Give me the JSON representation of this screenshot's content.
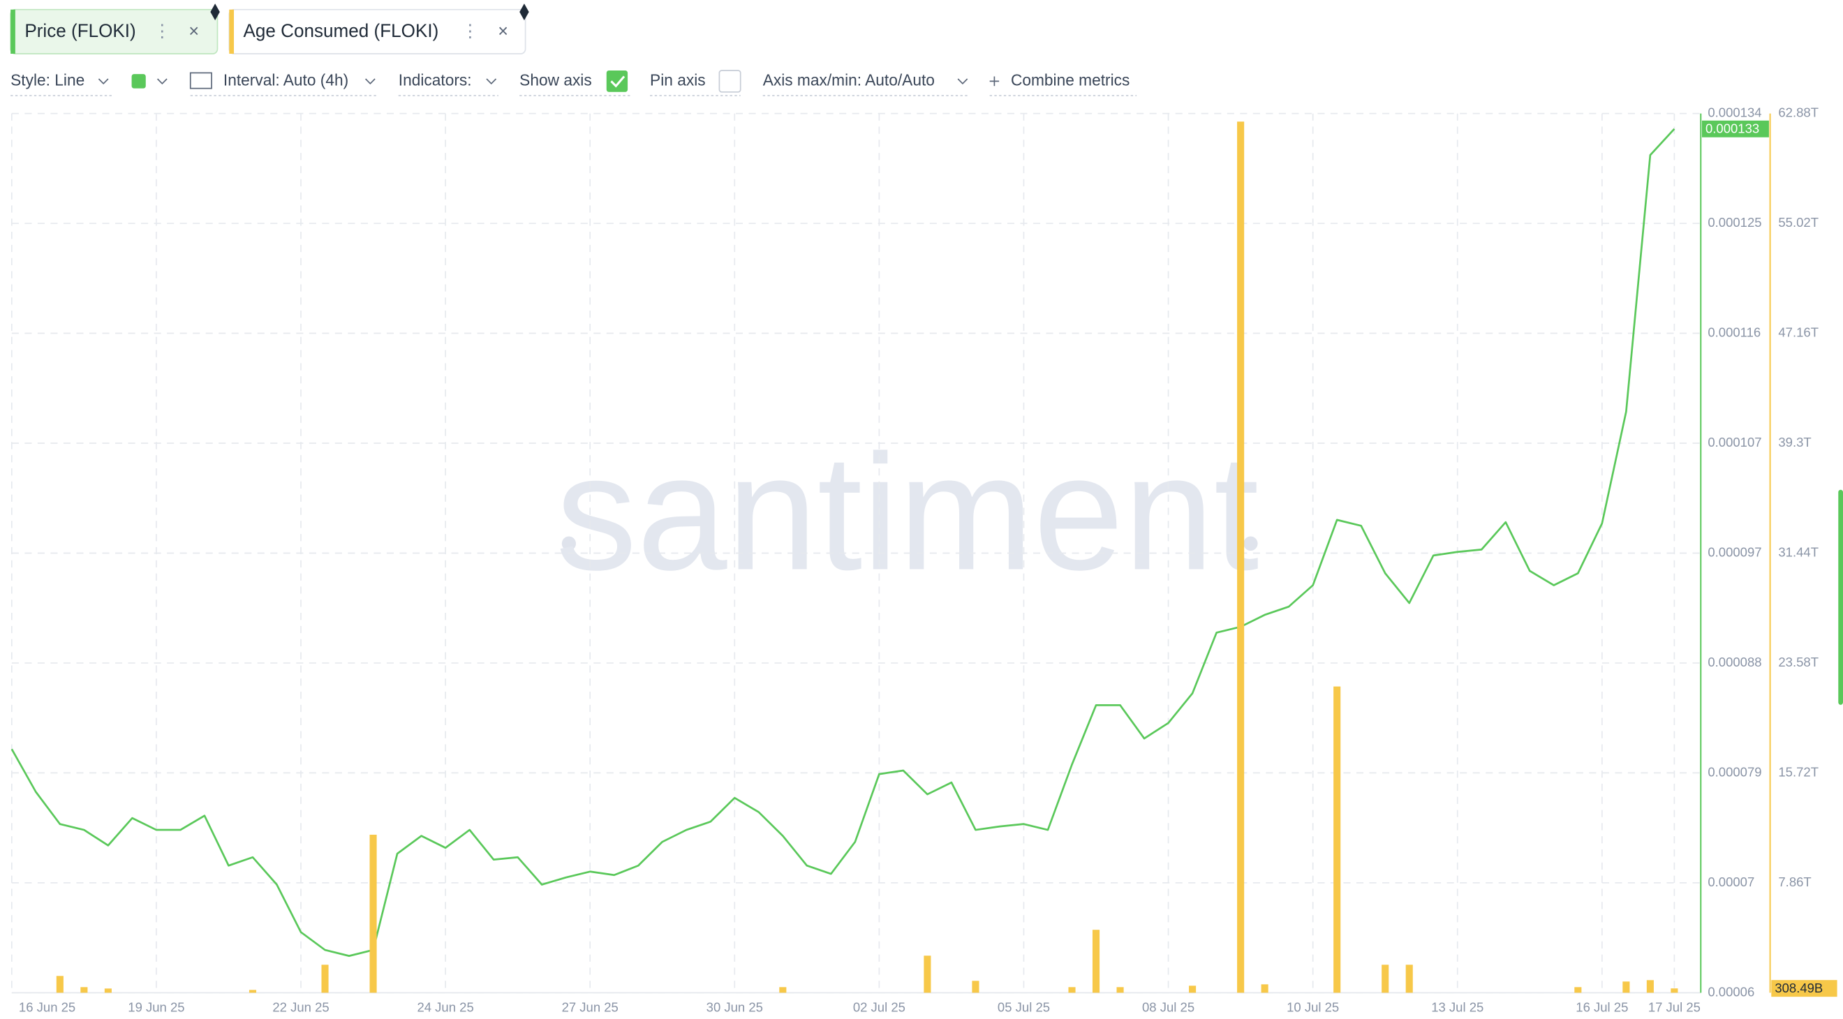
{
  "toolbar": {
    "style": "Style: Line",
    "interval": "Interval: Auto (4h)",
    "indicators": "Indicators:",
    "show_axis": "Show axis",
    "pin_axis": "Pin axis",
    "axis_range": "Axis max/min: Auto/Auto",
    "combine": "Combine metrics"
  },
  "watermark": "santiment",
  "chart_data": {
    "type": "combo",
    "categories": [
      "16 Jun 25",
      null,
      null,
      null,
      null,
      null,
      "19 Jun 25",
      null,
      null,
      null,
      null,
      null,
      "22 Jun 25",
      null,
      null,
      null,
      null,
      null,
      "24 Jun 25",
      null,
      null,
      null,
      null,
      null,
      "27 Jun 25",
      null,
      null,
      null,
      null,
      null,
      "30 Jun 25",
      null,
      null,
      null,
      null,
      null,
      "02 Jul 25",
      null,
      null,
      null,
      null,
      null,
      "05 Jul 25",
      null,
      null,
      null,
      null,
      null,
      "08 Jul 25",
      null,
      null,
      null,
      null,
      null,
      "10 Jul 25",
      null,
      null,
      null,
      null,
      null,
      "13 Jul 25",
      null,
      null,
      null,
      null,
      null,
      "16 Jul 25",
      null,
      null,
      "17 Jul 25"
    ],
    "series": [
      {
        "name": "Price (FLOKI)",
        "type": "line",
        "color": "#5ac85a",
        "current_label": "0.000133",
        "values": [
          8.05e-05,
          7.69e-05,
          7.42e-05,
          7.37e-05,
          7.24e-05,
          7.47e-05,
          7.37e-05,
          7.37e-05,
          7.49e-05,
          7.07e-05,
          7.14e-05,
          6.91e-05,
          6.51e-05,
          6.36e-05,
          6.31e-05,
          6.36e-05,
          7.17e-05,
          7.32e-05,
          7.22e-05,
          7.37e-05,
          7.12e-05,
          7.14e-05,
          6.91e-05,
          6.97e-05,
          7.02e-05,
          6.99e-05,
          7.07e-05,
          7.27e-05,
          7.37e-05,
          7.44e-05,
          7.64e-05,
          7.52e-05,
          7.32e-05,
          7.07e-05,
          7e-05,
          7.27e-05,
          7.84e-05,
          7.87e-05,
          7.67e-05,
          7.77e-05,
          7.37e-05,
          7.4e-05,
          7.42e-05,
          7.37e-05,
          7.92e-05,
          8.42e-05,
          8.42e-05,
          8.14e-05,
          8.27e-05,
          8.52e-05,
          9.03e-05,
          9.08e-05,
          9.18e-05,
          9.25e-05,
          9.43e-05,
          9.98e-05,
          9.93e-05,
          9.53e-05,
          9.28e-05,
          9.68e-05,
          9.71e-05,
          9.73e-05,
          9.96e-05,
          9.55e-05,
          9.43e-05,
          9.53e-05,
          9.95e-05,
          0.0001089,
          0.0001305,
          0.0001327
        ]
      },
      {
        "name": "Age Consumed (FLOKI)",
        "type": "bar",
        "axis": "y2",
        "color": "#f7c849",
        "current_label": "308.49B",
        "values": [
          0,
          0,
          1.2,
          0.4,
          0.3,
          0,
          0,
          0,
          0,
          0,
          0.2,
          0,
          0,
          2.0,
          0,
          11.3,
          0,
          0,
          0,
          0,
          0,
          0,
          0,
          0,
          0,
          0,
          0,
          0,
          0,
          0,
          0,
          0,
          0.4,
          0,
          0,
          0,
          0,
          0,
          2.65,
          0,
          0.85,
          0,
          0,
          0,
          0.4,
          4.5,
          0.4,
          0,
          0,
          0.5,
          0,
          62.3,
          0.6,
          0,
          0,
          21.9,
          0,
          2.0,
          2.0,
          0,
          0,
          0,
          0,
          0,
          0,
          0.4,
          0,
          0.8,
          0.9,
          0.30849
        ]
      }
    ],
    "ylim": [
      6e-05,
      0.000134
    ],
    "yticks": [
      {
        "value": 6e-05,
        "label": "0.00006"
      },
      {
        "value": 6.925e-05,
        "label": "0.00007"
      },
      {
        "value": 7.85e-05,
        "label": "0.000079"
      },
      {
        "value": 8.775e-05,
        "label": "0.000088"
      },
      {
        "value": 9.7e-05,
        "label": "0.000097"
      },
      {
        "value": 0.00010625,
        "label": "0.000107"
      },
      {
        "value": 0.0001155,
        "label": "0.000116"
      },
      {
        "value": 0.00012475,
        "label": "0.000125"
      },
      {
        "value": 0.000134,
        "label": "0.000134"
      }
    ],
    "y2lim": [
      0,
      62.88
    ],
    "y2ticks": [
      {
        "value": 7.86,
        "label": "7.86T"
      },
      {
        "value": 15.72,
        "label": "15.72T"
      },
      {
        "value": 23.58,
        "label": "23.58T"
      },
      {
        "value": 31.44,
        "label": "31.44T"
      },
      {
        "value": 39.3,
        "label": "39.3T"
      },
      {
        "value": 47.16,
        "label": "47.16T"
      },
      {
        "value": 55.02,
        "label": "55.02T"
      },
      {
        "value": 62.88,
        "label": "62.88T"
      }
    ],
    "grid": true
  }
}
